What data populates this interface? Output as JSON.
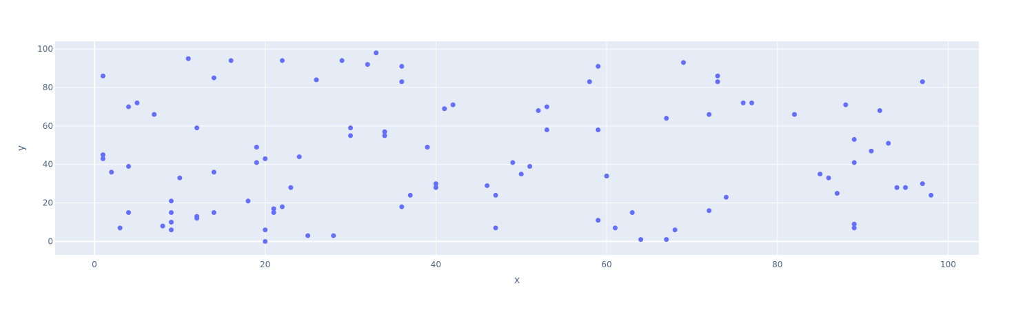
{
  "chart_data": {
    "type": "scatter",
    "xlabel": "x",
    "ylabel": "y",
    "xlim": [
      -4.6,
      103.6
    ],
    "ylim": [
      -7,
      104
    ],
    "x_ticks": [
      0,
      20,
      40,
      60,
      80,
      100
    ],
    "y_ticks": [
      0,
      20,
      40,
      60,
      80,
      100
    ],
    "x_tick_labels": [
      "0",
      "20",
      "40",
      "60",
      "80",
      "100"
    ],
    "y_tick_labels": [
      "0",
      "20",
      "40",
      "60",
      "80",
      "100"
    ],
    "grid": true,
    "colors": {
      "plot_bg": "#e5ecf6",
      "marker": "#636efa",
      "grid": "#ffffff",
      "text": "#506784"
    },
    "series": [
      {
        "points": [
          [
            1,
            86
          ],
          [
            1,
            45
          ],
          [
            1,
            43
          ],
          [
            2,
            36
          ],
          [
            3,
            7
          ],
          [
            4,
            70
          ],
          [
            4,
            39
          ],
          [
            4,
            15
          ],
          [
            5,
            72
          ],
          [
            7,
            66
          ],
          [
            8,
            8
          ],
          [
            9,
            21
          ],
          [
            9,
            15
          ],
          [
            9,
            10
          ],
          [
            9,
            6
          ],
          [
            10,
            33
          ],
          [
            11,
            95
          ],
          [
            12,
            59
          ],
          [
            12,
            13
          ],
          [
            12,
            12
          ],
          [
            14,
            85
          ],
          [
            14,
            36
          ],
          [
            14,
            15
          ],
          [
            16,
            94
          ],
          [
            18,
            21
          ],
          [
            19,
            49
          ],
          [
            19,
            41
          ],
          [
            20,
            43
          ],
          [
            20,
            6
          ],
          [
            20,
            0
          ],
          [
            21,
            17
          ],
          [
            21,
            15
          ],
          [
            22,
            94
          ],
          [
            22,
            18
          ],
          [
            23,
            28
          ],
          [
            24,
            44
          ],
          [
            25,
            3
          ],
          [
            26,
            84
          ],
          [
            28,
            3
          ],
          [
            29,
            94
          ],
          [
            30,
            59
          ],
          [
            30,
            55
          ],
          [
            32,
            92
          ],
          [
            33,
            98
          ],
          [
            34,
            57
          ],
          [
            34,
            55
          ],
          [
            36,
            91
          ],
          [
            36,
            83
          ],
          [
            36,
            18
          ],
          [
            37,
            24
          ],
          [
            39,
            49
          ],
          [
            40,
            30
          ],
          [
            40,
            28
          ],
          [
            41,
            69
          ],
          [
            42,
            71
          ],
          [
            46,
            29
          ],
          [
            47,
            24
          ],
          [
            47,
            7
          ],
          [
            49,
            41
          ],
          [
            50,
            35
          ],
          [
            51,
            39
          ],
          [
            52,
            68
          ],
          [
            53,
            70
          ],
          [
            53,
            58
          ],
          [
            58,
            83
          ],
          [
            59,
            91
          ],
          [
            59,
            58
          ],
          [
            59,
            11
          ],
          [
            60,
            34
          ],
          [
            61,
            7
          ],
          [
            63,
            15
          ],
          [
            64,
            1
          ],
          [
            67,
            64
          ],
          [
            67,
            1
          ],
          [
            68,
            6
          ],
          [
            69,
            93
          ],
          [
            72,
            66
          ],
          [
            72,
            16
          ],
          [
            73,
            86
          ],
          [
            73,
            83
          ],
          [
            74,
            23
          ],
          [
            76,
            72
          ],
          [
            77,
            72
          ],
          [
            82,
            66
          ],
          [
            85,
            35
          ],
          [
            86,
            33
          ],
          [
            87,
            25
          ],
          [
            88,
            71
          ],
          [
            89,
            53
          ],
          [
            89,
            41
          ],
          [
            89,
            9
          ],
          [
            89,
            7
          ],
          [
            91,
            47
          ],
          [
            92,
            68
          ],
          [
            93,
            51
          ],
          [
            94,
            28
          ],
          [
            95,
            28
          ],
          [
            97,
            83
          ],
          [
            97,
            30
          ],
          [
            98,
            24
          ]
        ]
      }
    ]
  }
}
